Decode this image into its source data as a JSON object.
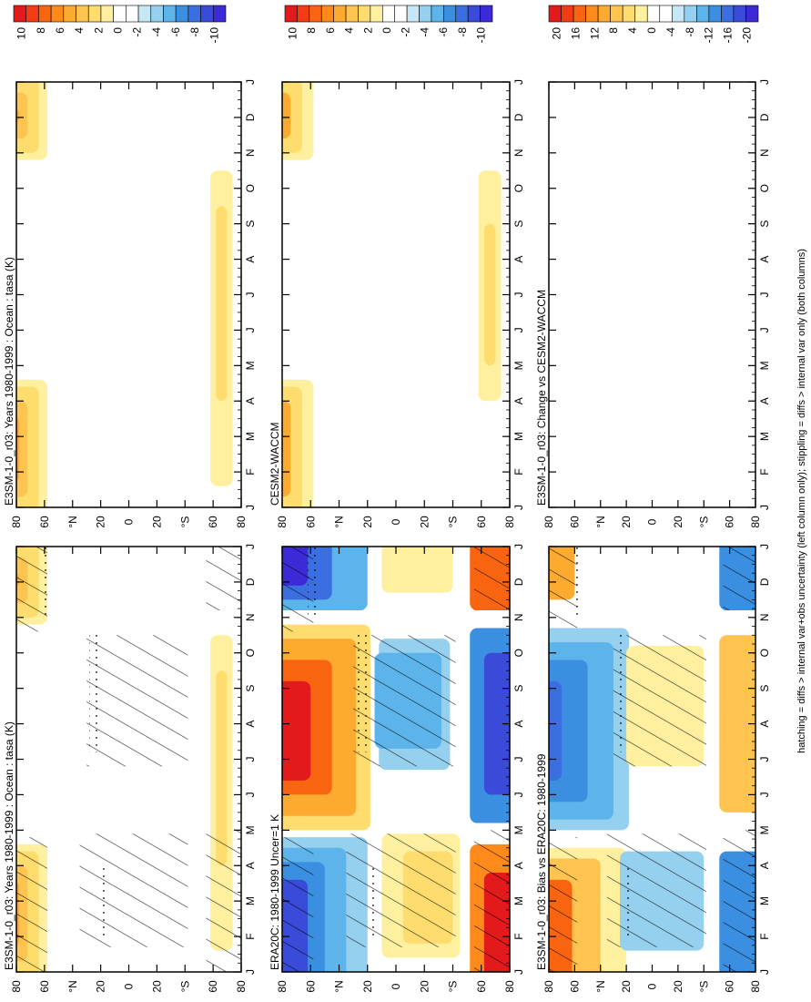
{
  "footer": {
    "text": "hatching = diffs > internal var+obs uncertainty (left column only); stippling = diffs > internal var only (both columns)"
  },
  "colorbar_ticks_a": [
    "10",
    "8",
    "6",
    "4",
    "2",
    "0",
    "-2",
    "-4",
    "-6",
    "-8",
    "-10"
  ],
  "colorbar_ticks_b": [
    "20",
    "16",
    "12",
    "8",
    "4",
    "0",
    "-4",
    "-8",
    "-12",
    "-16",
    "-20"
  ],
  "colors": {
    "warm": [
      "#e31a1c",
      "#f23c14",
      "#f96410",
      "#fd8a1a",
      "#fdaa30",
      "#fec44f",
      "#fedc6e",
      "#fff0a0"
    ],
    "neutral": "#ffffff",
    "cool": [
      "#c6e7f5",
      "#95d0ef",
      "#5cb4ea",
      "#3a8fe0",
      "#3b6fe0",
      "#3a4ad9",
      "#3c2ad6"
    ]
  },
  "chart_data": [
    {
      "type": "heatmap",
      "title": "E3SM-1-0_r03: Years 1980-1999 : Ocean : tasa (K)",
      "x_ticks": [
        "J",
        "F",
        "M",
        "A",
        "M",
        "J",
        "J",
        "A",
        "S",
        "O",
        "N",
        "D",
        "J"
      ],
      "y_ticks": [
        "80",
        "60",
        "°N",
        "20",
        "0",
        "20",
        "°S",
        "60",
        "80"
      ],
      "colorbar": "a",
      "description_of_field": "warm anomalies up to ~5 K poleward of 60N in winter months; weak warm band ~60S",
      "hatching": true
    },
    {
      "type": "heatmap",
      "title": "E3SM-1-0_r03: Years 1980-1999 : Ocean : tasa (K)",
      "x_ticks": [
        "J",
        "F",
        "M",
        "A",
        "M",
        "J",
        "J",
        "A",
        "S",
        "O",
        "N",
        "D",
        "J"
      ],
      "y_ticks": [
        "80",
        "60",
        "°N",
        "20",
        "0",
        "20",
        "°S",
        "60",
        "80"
      ],
      "colorbar": "a",
      "hatching": false
    },
    {
      "type": "heatmap",
      "title": "ERA20C: 1980-1999 Uncer=1 K",
      "x_ticks": [
        "J",
        "F",
        "M",
        "A",
        "M",
        "J",
        "J",
        "A",
        "S",
        "O",
        "N",
        "D",
        "J"
      ],
      "y_ticks": [
        "80",
        "60",
        "°N",
        "20",
        "0",
        "20",
        "°S",
        "60",
        "80"
      ],
      "colorbar": "a",
      "hatching": true
    },
    {
      "type": "heatmap",
      "title": "CESM2-WACCM",
      "x_ticks": [
        "J",
        "F",
        "M",
        "A",
        "M",
        "J",
        "J",
        "A",
        "S",
        "O",
        "N",
        "D",
        "J"
      ],
      "y_ticks": [
        "80",
        "60",
        "°N",
        "20",
        "0",
        "20",
        "°S",
        "60",
        "80"
      ],
      "colorbar": "a",
      "hatching": false
    },
    {
      "type": "heatmap",
      "title": "E3SM-1-0_r03: Bias vs ERA20C: 1980-1999",
      "x_ticks": [
        "J",
        "F",
        "M",
        "A",
        "M",
        "J",
        "J",
        "A",
        "S",
        "O",
        "N",
        "D",
        "J"
      ],
      "y_ticks": [
        "80",
        "60",
        "°N",
        "20",
        "0",
        "20",
        "°S",
        "60",
        "80"
      ],
      "colorbar": "b",
      "hatching": true
    },
    {
      "type": "heatmap",
      "title": "E3SM-1-0_r03: Change vs CESM2-WACCM",
      "x_ticks": [
        "J",
        "F",
        "M",
        "A",
        "M",
        "J",
        "J",
        "A",
        "S",
        "O",
        "N",
        "D",
        "J"
      ],
      "y_ticks": [
        "80",
        "60",
        "°N",
        "20",
        "0",
        "20",
        "°S",
        "60",
        "80"
      ],
      "colorbar": "b",
      "hatching": false
    }
  ]
}
